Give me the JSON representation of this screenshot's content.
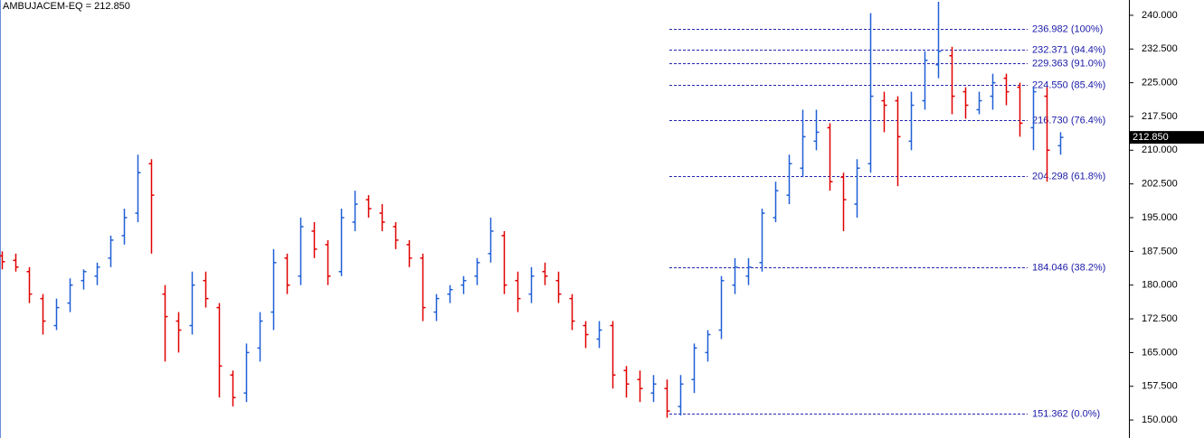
{
  "chart_data": {
    "type": "ohlc",
    "title": "AMBUJACEM-EQ = 212.850",
    "up_color": "#1f5fd6",
    "down_color": "#e00000",
    "ylim": [
      146,
      243.4
    ],
    "yticks": [
      {
        "value": 150,
        "label": "150.000"
      },
      {
        "value": 157.5,
        "label": "157.500"
      },
      {
        "value": 165,
        "label": "165.000"
      },
      {
        "value": 172.5,
        "label": "172.500"
      },
      {
        "value": 180,
        "label": "180.000"
      },
      {
        "value": 187.5,
        "label": "187.500"
      },
      {
        "value": 195,
        "label": "195.000"
      },
      {
        "value": 202.5,
        "label": "202.500"
      },
      {
        "value": 210,
        "label": "210.000"
      },
      {
        "value": 217.5,
        "label": "217.500"
      },
      {
        "value": 225,
        "label": "225.000"
      },
      {
        "value": 232.5,
        "label": "232.500"
      },
      {
        "value": 240,
        "label": "240.000"
      }
    ],
    "last_price": {
      "value": 212.85,
      "label": "212.850"
    },
    "fib_levels": [
      {
        "value": 236.982,
        "label": "236.982 (100%)"
      },
      {
        "value": 232.371,
        "label": "232.371 (94.4%)"
      },
      {
        "value": 229.363,
        "label": "229.363 (91.0%)"
      },
      {
        "value": 224.55,
        "label": "224.550 (85.4%)"
      },
      {
        "value": 216.73,
        "label": "216.730 (76.4%)"
      },
      {
        "value": 204.298,
        "label": "204.298 (61.8%)"
      },
      {
        "value": 184.046,
        "label": "184.046 (38.2%)"
      },
      {
        "value": 151.362,
        "label": "151.362 (0.0%)"
      }
    ],
    "open": [
      186.5,
      185.5,
      183,
      177,
      171,
      176,
      181,
      182,
      186,
      191,
      196,
      207,
      178,
      172,
      171,
      181,
      175,
      160,
      156,
      166,
      174,
      186,
      182,
      192,
      189,
      183,
      194,
      199,
      196,
      193,
      189,
      186,
      174,
      178,
      180,
      182,
      187,
      191,
      181,
      178,
      183,
      181,
      177,
      171,
      168,
      171,
      161,
      159,
      156,
      157,
      153,
      159,
      165,
      170,
      180,
      182,
      185,
      195,
      200,
      206,
      212,
      215,
      204,
      198,
      207,
      221,
      221,
      212,
      221,
      229,
      231,
      223,
      219,
      222,
      226,
      224,
      215,
      222,
      211
    ],
    "high": [
      187.5,
      187,
      184,
      178,
      177,
      181.5,
      183.5,
      185,
      191,
      197,
      209,
      208,
      180,
      174,
      183,
      183,
      176,
      161,
      167,
      174,
      188,
      187,
      195,
      194,
      190,
      197,
      201,
      200,
      198,
      194,
      190,
      187,
      178,
      180,
      182,
      186,
      195,
      192,
      183,
      184,
      185,
      183,
      178,
      172,
      172,
      172,
      162,
      161,
      160,
      159,
      160,
      167,
      170,
      182,
      186,
      186,
      197,
      203,
      209,
      219,
      219,
      216,
      205,
      208,
      240.5,
      223,
      222,
      223,
      232,
      243,
      233,
      224,
      223,
      227,
      227,
      225,
      224,
      224,
      214
    ],
    "low": [
      183.5,
      183,
      176,
      169,
      170,
      174,
      179,
      180,
      184,
      189,
      194,
      187,
      163,
      165,
      169,
      175,
      155,
      153,
      154,
      163,
      170,
      178,
      180,
      186,
      180,
      182,
      192,
      195,
      192,
      188,
      184,
      172,
      172,
      176,
      178,
      180,
      185,
      178,
      174,
      176,
      180,
      176,
      170,
      166,
      166,
      157,
      155,
      154,
      154,
      150.5,
      151,
      156,
      163,
      168,
      178,
      180,
      183,
      194,
      198,
      204,
      210,
      201,
      192,
      195,
      205,
      214,
      202,
      210,
      219,
      226,
      218,
      217,
      218,
      219,
      220,
      213,
      210,
      203,
      209
    ],
    "close": [
      185.2,
      184,
      178,
      172,
      175,
      180,
      183,
      184,
      190,
      195,
      205,
      200,
      173,
      170,
      180,
      177,
      162,
      155,
      165,
      172,
      185,
      180,
      193,
      188,
      182,
      195,
      198,
      197,
      194,
      190,
      186,
      175,
      177,
      179,
      181,
      185,
      192,
      180,
      177,
      182,
      182,
      178,
      172,
      169,
      170,
      160,
      158,
      157,
      158,
      152,
      158,
      166,
      169,
      181,
      184,
      184,
      196,
      201,
      207,
      213,
      214,
      203,
      199,
      206,
      222,
      220,
      213,
      220,
      230,
      232,
      222,
      220,
      221,
      225,
      223,
      216,
      223,
      210,
      212.85
    ]
  }
}
